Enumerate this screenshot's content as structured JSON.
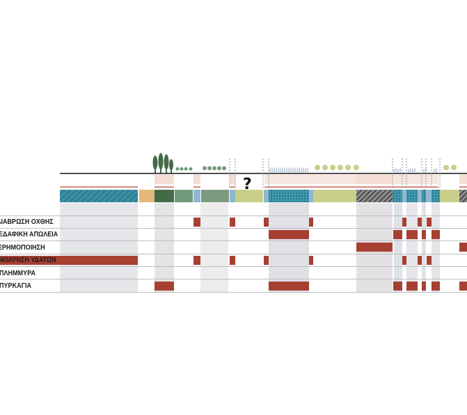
{
  "rows": [
    {
      "label": "ΔΙΑΒΡΩΣΗ ΟΧΘΗΣ"
    },
    {
      "label": "ΕΔΑΦΙΚΗ ΑΠΩΛΕΙΑ"
    },
    {
      "label": "ΕΡΗΜΟΠΟΙΗΣΗ"
    },
    {
      "label": "ΜΟΛΥΝΣΗ ΥΔΑΤΩΝ"
    },
    {
      "label": "ΠΛΗΜΜΥΡΑ"
    },
    {
      "label": "ΠΥΡΚΑΓΙΑ"
    }
  ],
  "unknown_marker": "?",
  "colors": {
    "water_blue": "#3a8fa3",
    "dark_green": "#456a48",
    "mid_green": "#6f9a7a",
    "sage": "#7c9a80",
    "light_blue": "#8fb8cf",
    "yellow_green": "#c8cf8a",
    "tan": "#e2b97a",
    "risk_red": "#a84032",
    "band_grey": "#e6e6ea",
    "pink": "#f3ddd4"
  },
  "segments": [
    {
      "type": "water-hatched"
    },
    {
      "type": "sand"
    },
    {
      "type": "dense-forest"
    },
    {
      "type": "grassland"
    },
    {
      "type": "stream"
    },
    {
      "type": "tree-row"
    },
    {
      "type": "stream"
    },
    {
      "type": "open-field"
    },
    {
      "type": "water-dotted"
    },
    {
      "type": "open-field"
    },
    {
      "type": "burnt-hatched"
    },
    {
      "type": "water-dotted"
    },
    {
      "type": "stream"
    },
    {
      "type": "water-dotted"
    },
    {
      "type": "open-field"
    }
  ],
  "risk_matrix": [
    [
      1,
      0,
      0,
      1,
      0,
      1,
      0,
      0,
      1,
      0,
      0,
      0,
      0,
      0,
      0
    ],
    [
      0,
      0,
      0,
      0,
      0,
      0,
      0,
      0,
      1,
      0,
      0,
      1,
      1,
      1,
      0
    ],
    [
      0,
      0,
      0,
      0,
      0,
      0,
      0,
      0,
      0,
      0,
      1,
      0,
      0,
      0,
      1
    ],
    [
      1,
      0,
      0,
      1,
      0,
      1,
      0,
      0,
      1,
      0,
      0,
      1,
      1,
      1,
      0
    ],
    [
      0,
      0,
      0,
      0,
      0,
      0,
      0,
      0,
      0,
      0,
      0,
      0,
      0,
      0,
      0
    ],
    [
      0,
      0,
      1,
      0,
      0,
      0,
      0,
      0,
      1,
      0,
      0,
      1,
      1,
      1,
      1
    ]
  ]
}
